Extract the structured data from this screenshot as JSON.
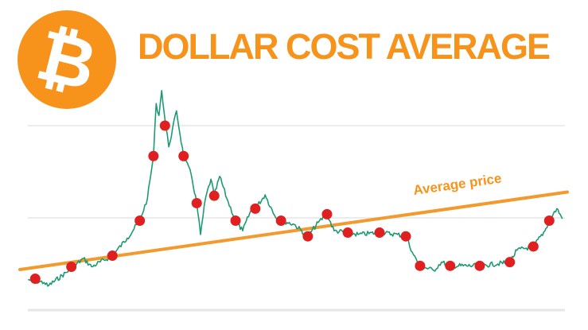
{
  "title": "DOLLAR COST AVERAGE",
  "logo": {
    "name": "bitcoin-logo",
    "glyph": "₿",
    "color": "#F7931A"
  },
  "chart_data": {
    "type": "line",
    "title": "DOLLAR COST AVERAGE",
    "xlabel": "",
    "ylabel": "",
    "xlim": [
      0,
      100
    ],
    "ylim": [
      0,
      2.4
    ],
    "grid": true,
    "gridlines_y": [
      0,
      1,
      2
    ],
    "colors": {
      "price": "#1E9A73",
      "purchase": "#E02020",
      "average": "#F39A2E",
      "grid": "#E6E6E6"
    },
    "price": {
      "x": [
        1.5,
        4.4,
        5.1,
        9.4,
        11.6,
        13.1,
        16.9,
        19.6,
        21.9,
        23.3,
        24.4,
        24.9,
        25.4,
        25.9,
        26.5,
        27.2,
        28.6,
        29.9,
        31.3,
        32.3,
        33.0,
        33.9,
        34.9,
        35.5,
        36.5,
        37.8,
        39.4,
        40.7,
        42.2,
        43.0,
        44.8,
        46.5,
        47.7,
        50.1,
        52.6,
        54.5,
        56.1,
        57.4,
        59.9,
        61.8,
        65.7,
        69.0,
        70.5,
        71.9,
        73.1,
        75.6,
        77.0,
        78.6,
        84.0,
        89.5,
        90.8,
        93.8,
        95.9,
        96.7,
        98.1,
        99.1
      ],
      "y": [
        0.33,
        0.3,
        0.26,
        0.45,
        0.56,
        0.47,
        0.59,
        0.78,
        0.97,
        1.21,
        1.67,
        2.24,
        2.11,
        2.38,
        2.07,
        1.77,
        2.16,
        1.67,
        1.47,
        1.16,
        0.82,
        1.21,
        1.42,
        1.24,
        1.45,
        1.21,
        0.97,
        0.86,
        1.08,
        1.1,
        1.25,
        1.03,
        0.97,
        0.93,
        0.8,
        0.95,
        1.04,
        0.86,
        0.84,
        0.82,
        0.84,
        0.82,
        0.8,
        0.6,
        0.48,
        0.43,
        0.52,
        0.48,
        0.48,
        0.52,
        0.65,
        0.69,
        0.86,
        0.97,
        1.1,
        0.99
      ]
    },
    "purchases": {
      "x": [
        2.8,
        9.4,
        16.9,
        21.9,
        24.4,
        26.5,
        29.9,
        32.3,
        35.5,
        39.4,
        43.0,
        47.7,
        52.6,
        56.1,
        59.9,
        65.7,
        70.5,
        73.1,
        78.6,
        84.0,
        89.5,
        93.8,
        96.7
      ],
      "y": [
        0.34,
        0.47,
        0.59,
        0.97,
        1.67,
        2.0,
        1.67,
        1.16,
        1.24,
        0.97,
        1.1,
        0.97,
        0.8,
        1.04,
        0.84,
        0.84,
        0.8,
        0.48,
        0.48,
        0.48,
        0.52,
        0.69,
        0.97
      ]
    },
    "average_line": {
      "label": "Average price",
      "x": [
        0,
        100
      ],
      "y": [
        0.44,
        1.28
      ]
    }
  }
}
